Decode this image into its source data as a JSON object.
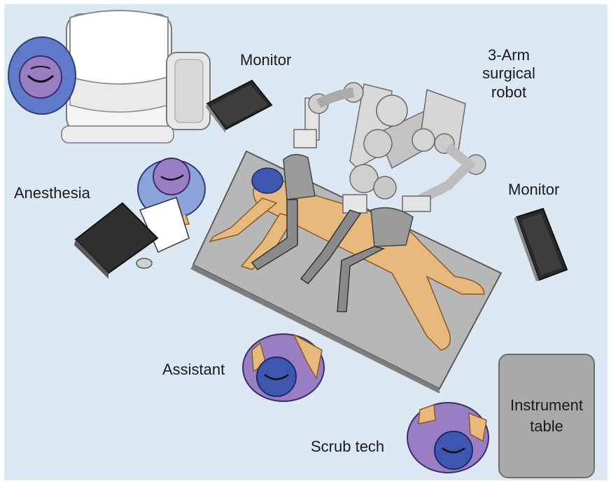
{
  "labels": {
    "monitor_top": "Monitor",
    "robot_line1": "3-Arm",
    "robot_line2": "surgical",
    "robot_line3": "robot",
    "anesthesia": "Anesthesia",
    "monitor_right": "Monitor",
    "assistant": "Assistant",
    "scrub_tech": "Scrub tech",
    "instrument_line1": "Instrument",
    "instrument_line2": "table"
  },
  "colors": {
    "background": "#dce9f5",
    "floor_table": "#bdbdbd",
    "patient_skin": "#e8b97c",
    "surgeon_cap": "#8d72b8",
    "scrub_cap": "#3f56b0",
    "gown_blue": "#8aa3d8",
    "gown_purple": "#9a7ec4",
    "robot_gray": "#cfcfcf",
    "monitor_dark": "#2a2a2a"
  }
}
